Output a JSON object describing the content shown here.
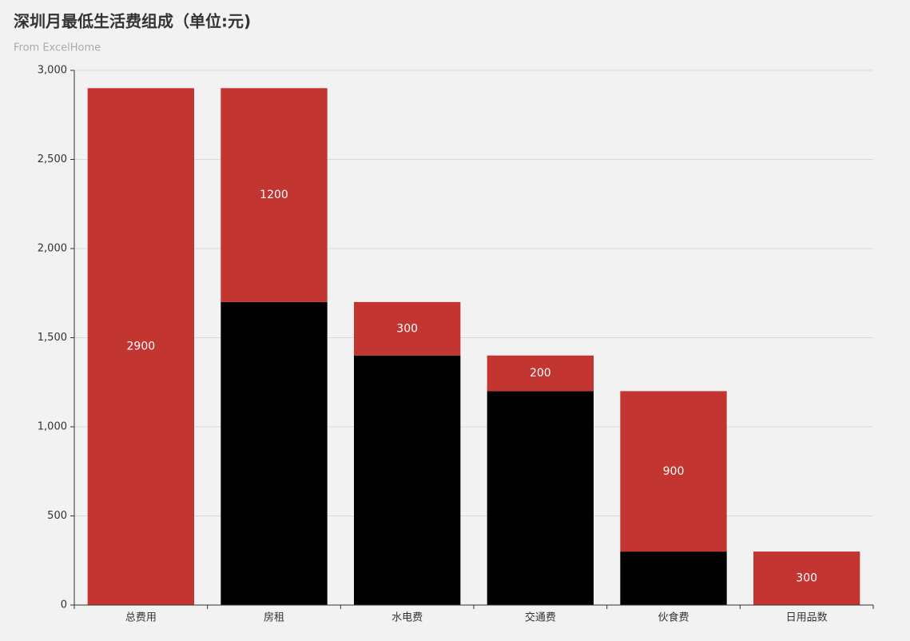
{
  "chart_data": {
    "type": "bar",
    "stacked": true,
    "title": "深圳月最低生活费组成（单位:元)",
    "subtitle": "From ExcelHome",
    "categories": [
      "总费用",
      "房租",
      "水电费",
      "交通费",
      "伙食费",
      "日用品数"
    ],
    "series": [
      {
        "color": "#000000",
        "values": [
          0,
          1700,
          1400,
          1200,
          300,
          0
        ],
        "show_labels": false
      },
      {
        "color": "#c23531",
        "values": [
          2900,
          1200,
          300,
          200,
          900,
          300
        ],
        "show_labels": true
      }
    ],
    "ylim": [
      0,
      3000
    ],
    "yticks": [
      0,
      500,
      {
        "value": 1000,
        "label": "1,000"
      },
      {
        "value": 1500,
        "label": "1,500"
      },
      {
        "value": 2000,
        "label": "2,000"
      },
      {
        "value": 2500,
        "label": "2,500"
      },
      {
        "value": 3000,
        "label": "3,000"
      }
    ],
    "grid": true
  }
}
